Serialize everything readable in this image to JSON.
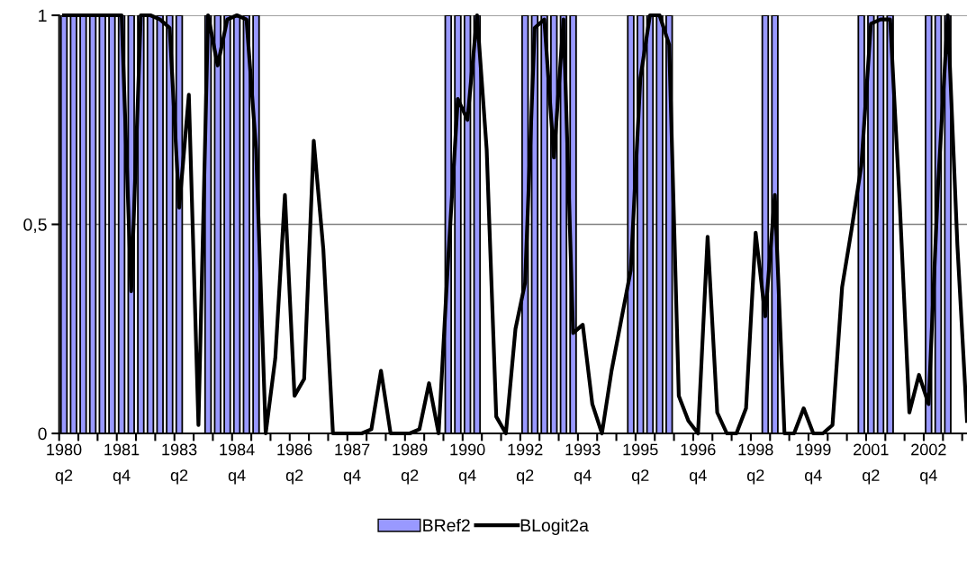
{
  "chart_data": {
    "type": "bar",
    "categories": [
      "1980\nq2",
      null,
      null,
      null,
      null,
      null,
      "1981\nq4",
      null,
      null,
      null,
      null,
      null,
      "1983\nq2",
      null,
      null,
      null,
      null,
      null,
      "1984\nq4",
      null,
      null,
      null,
      null,
      null,
      "1986\nq2",
      null,
      null,
      null,
      null,
      null,
      "1987\nq4",
      null,
      null,
      null,
      null,
      null,
      "1989\nq2",
      null,
      null,
      null,
      null,
      null,
      "1990\nq4",
      null,
      null,
      null,
      null,
      null,
      "1992\nq2",
      null,
      null,
      null,
      null,
      null,
      "1993\nq4",
      null,
      null,
      null,
      null,
      null,
      "1995\nq2",
      null,
      null,
      null,
      null,
      null,
      "1996\nq4",
      null,
      null,
      null,
      null,
      null,
      "1998\nq2",
      null,
      null,
      null,
      null,
      null,
      "1999\nq4",
      null,
      null,
      null,
      null,
      null,
      "2001\nq2",
      null,
      null,
      null,
      null,
      null,
      "2002\nq4",
      null,
      null,
      null,
      null
    ],
    "series": [
      {
        "name": "BRef2",
        "color": "#9999ff",
        "values": [
          1,
          1,
          1,
          1,
          1,
          1,
          1,
          1,
          1,
          1,
          1,
          1,
          1,
          null,
          null,
          1,
          1,
          1,
          1,
          1,
          1,
          null,
          null,
          null,
          null,
          null,
          null,
          null,
          null,
          null,
          null,
          null,
          null,
          null,
          null,
          null,
          null,
          null,
          null,
          null,
          1,
          1,
          1,
          1,
          null,
          null,
          null,
          null,
          1,
          1,
          1,
          1,
          1,
          1,
          null,
          null,
          null,
          null,
          null,
          1,
          1,
          1,
          1,
          1,
          null,
          null,
          null,
          null,
          null,
          null,
          null,
          null,
          null,
          1,
          1,
          null,
          null,
          null,
          null,
          null,
          null,
          null,
          null,
          1,
          1,
          1,
          1,
          null,
          null,
          null,
          1,
          1,
          1,
          null,
          null
        ]
      },
      {
        "name": "BLogit2a",
        "type": "line",
        "color": "#000000",
        "values": [
          1,
          1,
          1,
          1,
          1,
          1,
          1,
          0.34,
          1,
          1,
          0.99,
          0.97,
          0.54,
          0.81,
          0.02,
          1,
          0.88,
          0.99,
          1,
          0.99,
          0.68,
          0,
          0.18,
          0.57,
          0.09,
          0.13,
          0.7,
          0.44,
          0,
          0,
          0,
          0,
          0.01,
          0.15,
          0,
          0,
          0,
          0.01,
          0.12,
          0,
          0.42,
          0.8,
          0.75,
          1,
          0.68,
          0.04,
          0,
          0.25,
          0.36,
          0.97,
          0.99,
          0.66,
          0.99,
          0.24,
          0.26,
          0.07,
          0,
          0.15,
          0.27,
          0.39,
          0.85,
          1,
          1,
          0.93,
          0.09,
          0.03,
          0,
          0.47,
          0.05,
          0,
          0,
          0.06,
          0.48,
          0.28,
          0.57,
          0,
          0,
          0.06,
          0,
          0,
          0.02,
          0.35,
          0.49,
          0.64,
          0.98,
          0.99,
          0.99,
          0.55,
          0.05,
          0.14,
          0.07,
          0.6,
          1,
          0.45,
          0.03
        ]
      }
    ],
    "ylim": [
      0,
      1
    ],
    "yticks": [
      0,
      {
        "value": 0.5,
        "label": "0,5"
      },
      1
    ],
    "grid": "y",
    "legend": "bottom"
  }
}
